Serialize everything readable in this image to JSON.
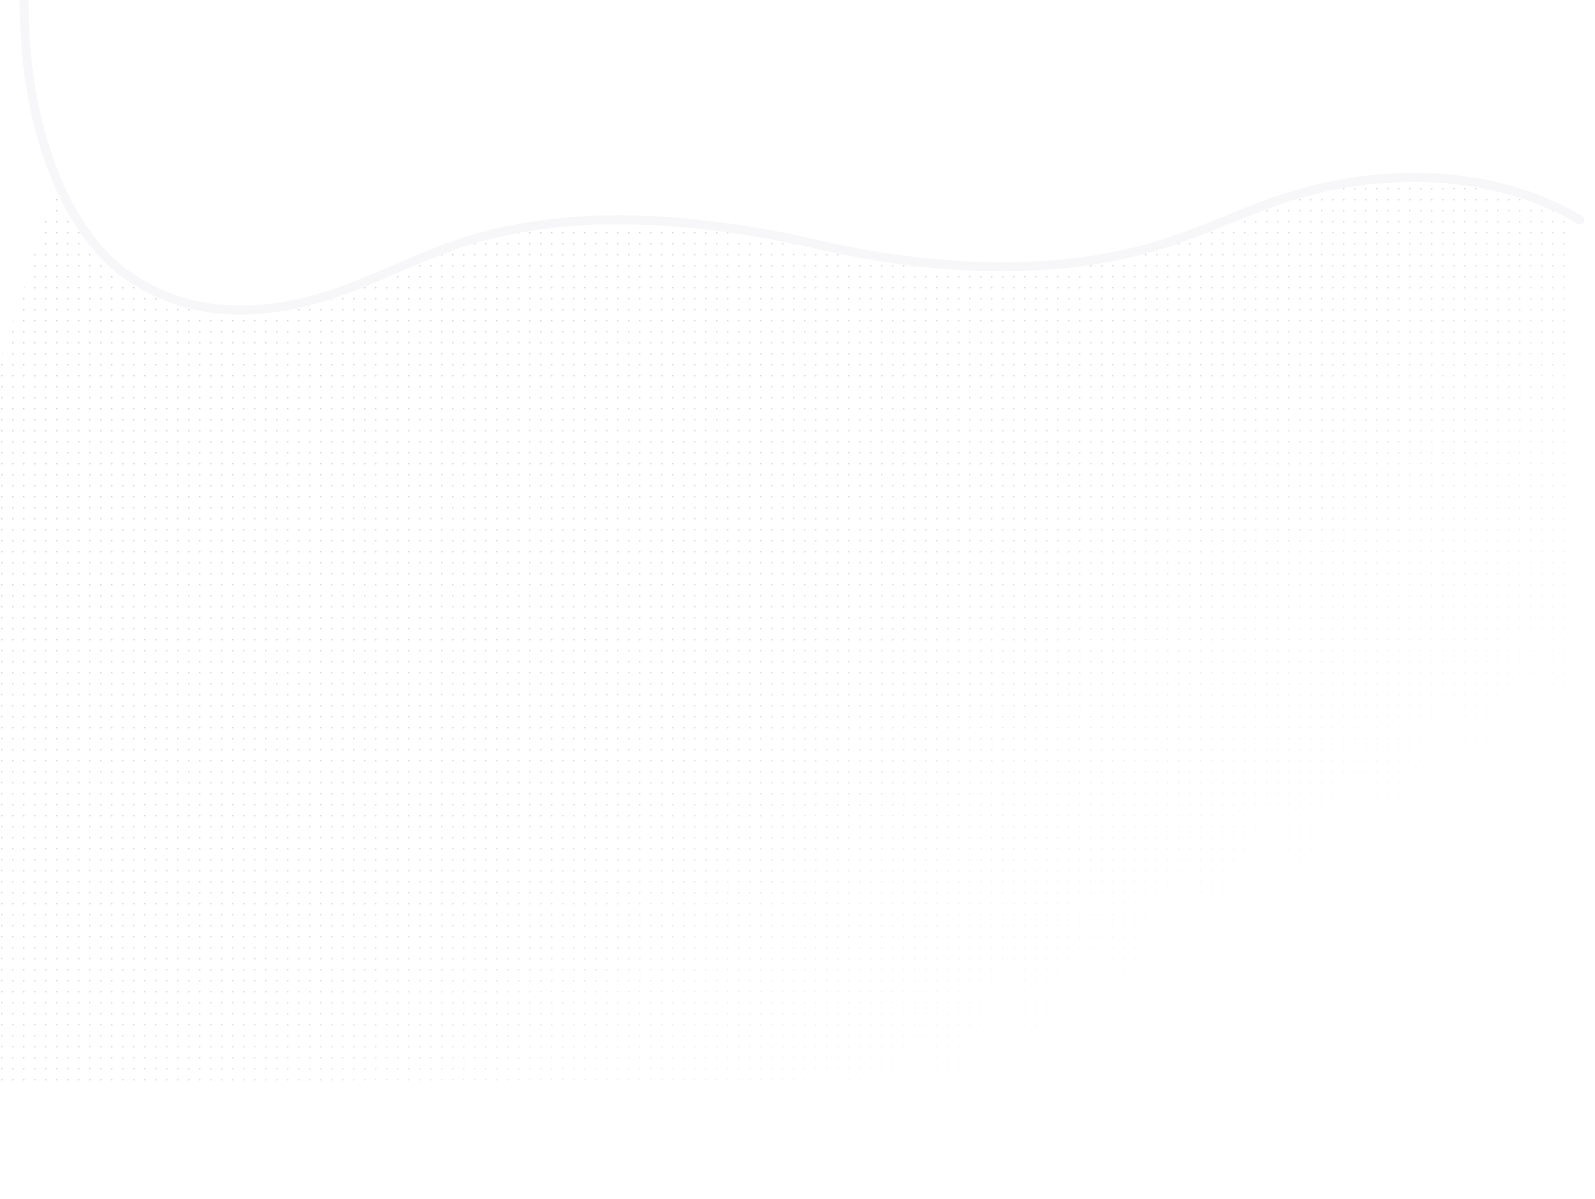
{
  "background": {
    "pattern": "dot-grid",
    "dot_color": "#d4d4d8",
    "wave_color": "#f7f7fa",
    "page_color": "#ffffff"
  }
}
